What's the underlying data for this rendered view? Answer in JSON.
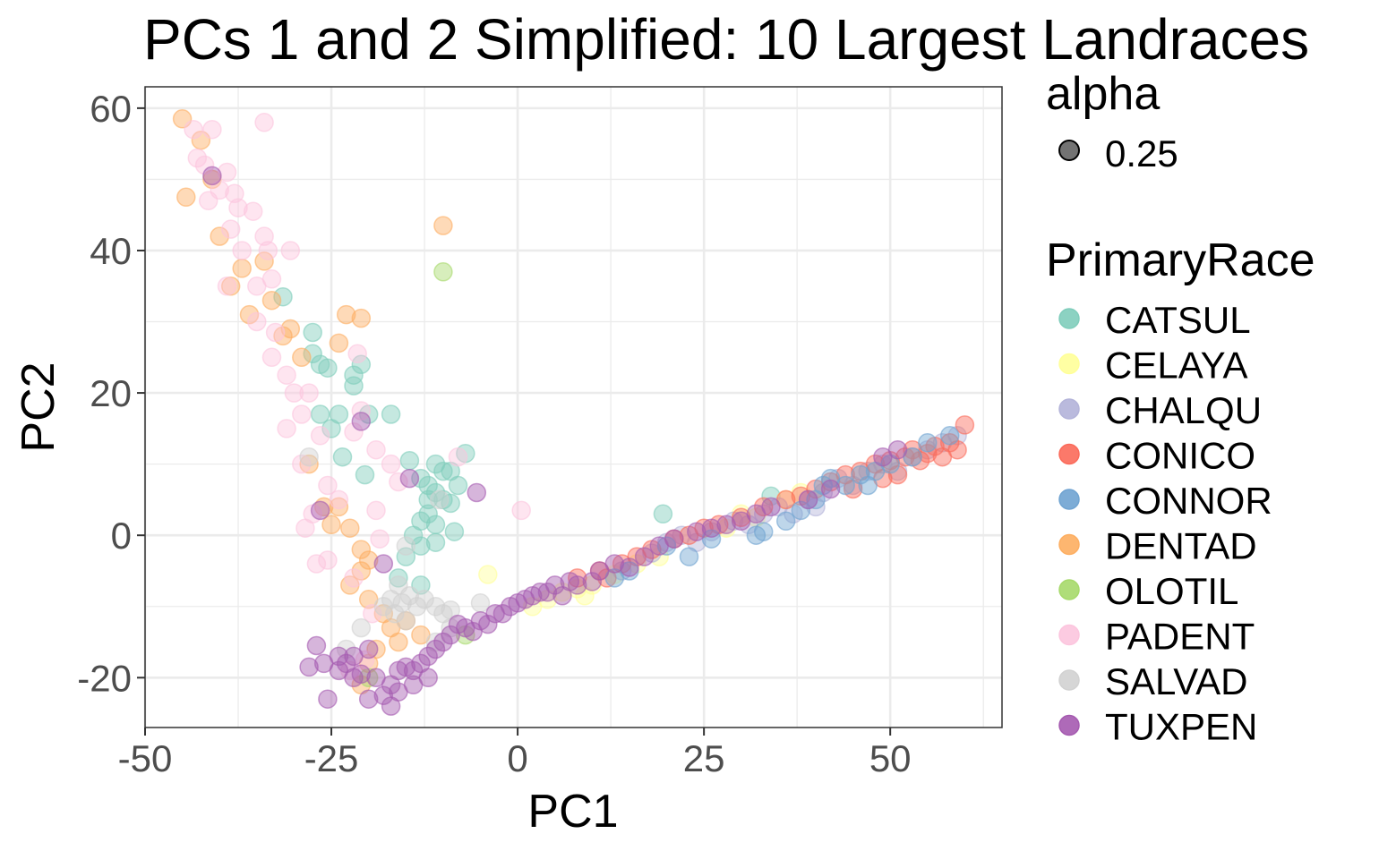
{
  "chart_data": {
    "type": "scatter",
    "title": "PCs 1 and 2 Simplified: 10 Largest Landraces",
    "xlabel": "PC1",
    "ylabel": "PC2",
    "xlim": [
      -50,
      65
    ],
    "ylim": [
      -27,
      63
    ],
    "x_ticks": [
      -50,
      -25,
      0,
      25,
      50
    ],
    "y_ticks": [
      -20,
      0,
      20,
      40,
      60
    ],
    "x_tick_labels": [
      "-50",
      "-25",
      "0",
      "25",
      "50"
    ],
    "y_tick_labels": [
      "-20",
      "0",
      "20",
      "40",
      "60"
    ],
    "grid": true,
    "legend_position": "right",
    "alpha_legend": {
      "title": "alpha",
      "label": "0.25",
      "color": "#000000"
    },
    "series_legend_title": "PrimaryRace",
    "point_alpha": 0.45,
    "series": [
      {
        "name": "CATSUL",
        "color": "#7fcdbb",
        "points": [
          [
            -31.5,
            33.5
          ],
          [
            -27.5,
            28.5
          ],
          [
            -27.5,
            25.5
          ],
          [
            -26.5,
            24
          ],
          [
            -25.5,
            23.5
          ],
          [
            -21,
            24
          ],
          [
            -22,
            22.5
          ],
          [
            -22,
            21
          ],
          [
            -26.5,
            17
          ],
          [
            -24,
            17
          ],
          [
            -20,
            17
          ],
          [
            -17,
            17
          ],
          [
            -25,
            15
          ],
          [
            -23.5,
            11
          ],
          [
            -20.5,
            8.5
          ],
          [
            -14.5,
            10.5
          ],
          [
            -13,
            8
          ],
          [
            -12,
            7
          ],
          [
            -11,
            6
          ],
          [
            -10,
            5
          ],
          [
            -9,
            4.5
          ],
          [
            -12,
            3
          ],
          [
            -13,
            2
          ],
          [
            -11,
            1.5
          ],
          [
            -14,
            0
          ],
          [
            -13,
            -1.5
          ],
          [
            -15,
            -3
          ],
          [
            -16,
            -6
          ],
          [
            -13,
            -7
          ],
          [
            -7,
            11.5
          ],
          [
            -9,
            9
          ],
          [
            -8,
            7
          ],
          [
            -10,
            9
          ],
          [
            -11,
            10
          ],
          [
            -12,
            5
          ],
          [
            -8.5,
            0.5
          ],
          [
            -11,
            -1
          ],
          [
            19.5,
            3
          ],
          [
            34,
            5.5
          ]
        ]
      },
      {
        "name": "CELAYA",
        "color": "#ffff99",
        "points": [
          [
            -4,
            -5.5
          ],
          [
            2,
            -10
          ],
          [
            4,
            -9
          ],
          [
            6,
            -8
          ],
          [
            8,
            -7.5
          ],
          [
            9,
            -8.5
          ],
          [
            10,
            -7
          ],
          [
            13,
            -5.5
          ],
          [
            16,
            -4
          ],
          [
            19,
            -3
          ],
          [
            28,
            1
          ],
          [
            30,
            3
          ],
          [
            32,
            2.5
          ],
          [
            36,
            5
          ],
          [
            38,
            6
          ]
        ]
      },
      {
        "name": "CHALQU",
        "color": "#b3b3d9",
        "points": [
          [
            14,
            -5
          ],
          [
            18,
            -2.5
          ],
          [
            22,
            0
          ],
          [
            24,
            -1
          ],
          [
            26,
            0.5
          ],
          [
            29,
            2
          ],
          [
            31,
            1.5
          ],
          [
            33,
            3
          ],
          [
            35,
            4
          ],
          [
            37,
            3
          ],
          [
            39,
            5
          ],
          [
            41,
            6
          ],
          [
            43,
            8
          ],
          [
            45,
            7
          ],
          [
            47,
            9
          ],
          [
            49,
            10
          ],
          [
            51,
            9
          ],
          [
            53,
            11
          ],
          [
            55,
            12
          ],
          [
            57,
            13
          ],
          [
            59,
            14
          ],
          [
            20,
            -1
          ],
          [
            40,
            4
          ]
        ]
      },
      {
        "name": "CONICO",
        "color": "#fb6a5a",
        "points": [
          [
            8,
            -6
          ],
          [
            11,
            -5
          ],
          [
            12,
            -6
          ],
          [
            14,
            -4
          ],
          [
            16,
            -3
          ],
          [
            18,
            -2
          ],
          [
            21,
            -0.5
          ],
          [
            23,
            0
          ],
          [
            25,
            1
          ],
          [
            27,
            1.5
          ],
          [
            30,
            2.5
          ],
          [
            33,
            4
          ],
          [
            36,
            5
          ],
          [
            38,
            5.5
          ],
          [
            40,
            6.5
          ],
          [
            42,
            7.5
          ],
          [
            44,
            8.5
          ],
          [
            46,
            9
          ],
          [
            48,
            10
          ],
          [
            50,
            10.5
          ],
          [
            52,
            11
          ],
          [
            53,
            12
          ],
          [
            54,
            10.5
          ],
          [
            55,
            11.5
          ],
          [
            56,
            12.5
          ],
          [
            57,
            11
          ],
          [
            58,
            13
          ],
          [
            59,
            12
          ],
          [
            60,
            15.5
          ],
          [
            51,
            8.5
          ],
          [
            49,
            8
          ],
          [
            45,
            6.5
          ]
        ]
      },
      {
        "name": "CONNOR",
        "color": "#6fa3d1",
        "points": [
          [
            13,
            -6
          ],
          [
            15,
            -5
          ],
          [
            20,
            -1.5
          ],
          [
            23,
            -3
          ],
          [
            26,
            -0.5
          ],
          [
            32,
            0
          ],
          [
            33,
            0.5
          ],
          [
            36,
            2
          ],
          [
            38,
            3.5
          ],
          [
            40,
            5
          ],
          [
            41,
            7
          ],
          [
            42,
            8
          ],
          [
            44,
            7
          ],
          [
            46,
            8.5
          ],
          [
            47,
            7
          ],
          [
            48,
            9
          ],
          [
            50,
            10
          ],
          [
            53,
            11
          ],
          [
            55,
            13
          ],
          [
            58,
            14
          ]
        ]
      },
      {
        "name": "DENTAD",
        "color": "#fdae61",
        "points": [
          [
            -45,
            58.5
          ],
          [
            -42.5,
            55.5
          ],
          [
            -44.5,
            47.5
          ],
          [
            -41,
            50
          ],
          [
            -40,
            42
          ],
          [
            -38.5,
            35
          ],
          [
            -37,
            37.5
          ],
          [
            -36,
            31
          ],
          [
            -34,
            38.5
          ],
          [
            -33,
            33
          ],
          [
            -31.5,
            28
          ],
          [
            -30.5,
            29
          ],
          [
            -29,
            25
          ],
          [
            -23,
            31
          ],
          [
            -21,
            30.5
          ],
          [
            -24,
            27
          ],
          [
            -28,
            10
          ],
          [
            -26,
            4
          ],
          [
            -24,
            4
          ],
          [
            -25,
            1.5
          ],
          [
            -22.5,
            1
          ],
          [
            -21,
            -2
          ],
          [
            -20,
            -3.5
          ],
          [
            -21,
            -5
          ],
          [
            -22.5,
            -7
          ],
          [
            -20,
            -9
          ],
          [
            -18,
            -11
          ],
          [
            -17,
            -13
          ],
          [
            -19,
            -16
          ],
          [
            -20,
            -18
          ],
          [
            -21,
            -21
          ],
          [
            -15,
            -12
          ],
          [
            -16,
            -15
          ],
          [
            -13,
            -14
          ],
          [
            -10,
            43.5
          ]
        ]
      },
      {
        "name": "OLOTIL",
        "color": "#a6d96a",
        "points": [
          [
            -10,
            37
          ],
          [
            -20,
            -20
          ],
          [
            -7,
            -14
          ]
        ]
      },
      {
        "name": "PADENT",
        "color": "#fcc5de",
        "points": [
          [
            -43.5,
            57
          ],
          [
            -41,
            57
          ],
          [
            -34,
            58
          ],
          [
            -42,
            52
          ],
          [
            -43,
            53
          ],
          [
            -39,
            51
          ],
          [
            -40,
            48.5
          ],
          [
            -38,
            48
          ],
          [
            -37.5,
            46
          ],
          [
            -41.5,
            47
          ],
          [
            -35.5,
            45.5
          ],
          [
            -38.5,
            43
          ],
          [
            -34,
            42
          ],
          [
            -33.5,
            40
          ],
          [
            -30.5,
            40
          ],
          [
            -37,
            40
          ],
          [
            -39,
            35
          ],
          [
            -35,
            35
          ],
          [
            -33,
            36
          ],
          [
            -35,
            30
          ],
          [
            -32.5,
            28.5
          ],
          [
            -33,
            25
          ],
          [
            -31,
            22.5
          ],
          [
            -30,
            20
          ],
          [
            -28,
            20
          ],
          [
            -29,
            17
          ],
          [
            -31,
            15
          ],
          [
            -29,
            10
          ],
          [
            -26.5,
            14
          ],
          [
            -25.5,
            7
          ],
          [
            -24,
            5
          ],
          [
            -27.5,
            3
          ],
          [
            -28.5,
            1
          ],
          [
            -27,
            -4
          ],
          [
            -25.5,
            -3.5
          ],
          [
            -22,
            -6
          ],
          [
            -21.5,
            25.5
          ],
          [
            -21,
            17.5
          ],
          [
            -22,
            14.5
          ],
          [
            -19,
            12
          ],
          [
            -17,
            10
          ],
          [
            -16,
            7.5
          ],
          [
            -19,
            3.5
          ],
          [
            -18.5,
            -0.5
          ],
          [
            -8,
            11
          ],
          [
            0.5,
            3.5
          ],
          [
            -22.5,
            -19
          ],
          [
            -20.5,
            -17.5
          ],
          [
            -19.5,
            -11
          ]
        ]
      },
      {
        "name": "SALVAD",
        "color": "#d1d1d1",
        "points": [
          [
            -16,
            -7
          ],
          [
            -17,
            -9
          ],
          [
            -15.5,
            -9.5
          ],
          [
            -14.5,
            -8.5
          ],
          [
            -13.5,
            -10
          ],
          [
            -16.5,
            -11
          ],
          [
            -18,
            -10
          ],
          [
            -15,
            -12
          ],
          [
            -12.5,
            -9
          ],
          [
            -11,
            -10
          ],
          [
            -10,
            -11
          ],
          [
            -9,
            -10.5
          ],
          [
            -5,
            -9.5
          ],
          [
            -11,
            -15
          ],
          [
            -9,
            -13
          ],
          [
            -23,
            -16
          ],
          [
            -21,
            -13
          ],
          [
            -28,
            11
          ],
          [
            -15,
            -1.5
          ],
          [
            -10.5,
            5
          ]
        ]
      },
      {
        "name": "TUXPEN",
        "color": "#a55ab0",
        "points": [
          [
            -41,
            50.5
          ],
          [
            -21,
            16
          ],
          [
            -26.5,
            3.5
          ],
          [
            -18,
            -4
          ],
          [
            -14.5,
            8
          ],
          [
            -5.5,
            6
          ],
          [
            -27,
            -15.5
          ],
          [
            -26,
            -18
          ],
          [
            -28,
            -18.5
          ],
          [
            -24,
            -17
          ],
          [
            -25.5,
            -23
          ],
          [
            -22,
            -17
          ],
          [
            -21,
            -19.5
          ],
          [
            -20,
            -16
          ],
          [
            -19,
            -20
          ],
          [
            -18,
            -22.5
          ],
          [
            -17,
            -21
          ],
          [
            -16,
            -19
          ],
          [
            -15,
            -18.5
          ],
          [
            -14,
            -19
          ],
          [
            -13,
            -18
          ],
          [
            -12,
            -17
          ],
          [
            -11,
            -16
          ],
          [
            -10,
            -15
          ],
          [
            -9,
            -14
          ],
          [
            -8,
            -12.5
          ],
          [
            -7,
            -13
          ],
          [
            -6,
            -13.5
          ],
          [
            -5,
            -12
          ],
          [
            -4,
            -12.5
          ],
          [
            -3,
            -11
          ],
          [
            -2,
            -11
          ],
          [
            -1,
            -10
          ],
          [
            0,
            -9.5
          ],
          [
            1,
            -9
          ],
          [
            2,
            -8.5
          ],
          [
            3,
            -8
          ],
          [
            4,
            -8
          ],
          [
            5,
            -7
          ],
          [
            6,
            -8.5
          ],
          [
            7,
            -6.5
          ],
          [
            8,
            -7
          ],
          [
            10,
            -6.5
          ],
          [
            11,
            -5
          ],
          [
            13,
            -4
          ],
          [
            15,
            -4.5
          ],
          [
            17,
            -3
          ],
          [
            19,
            -1.5
          ],
          [
            21,
            -0.5
          ],
          [
            24,
            0.5
          ],
          [
            26,
            1
          ],
          [
            28,
            1.5
          ],
          [
            30,
            2
          ],
          [
            32,
            3
          ],
          [
            34,
            4
          ],
          [
            39,
            5
          ],
          [
            42,
            6.5
          ],
          [
            49,
            11
          ],
          [
            51,
            12
          ],
          [
            -20,
            -23
          ],
          [
            -17,
            -24
          ],
          [
            -23,
            -18
          ],
          [
            -24,
            -19
          ],
          [
            -22,
            -20
          ],
          [
            -16,
            -22
          ],
          [
            -14,
            -21
          ],
          [
            -12,
            -20
          ]
        ]
      }
    ]
  }
}
